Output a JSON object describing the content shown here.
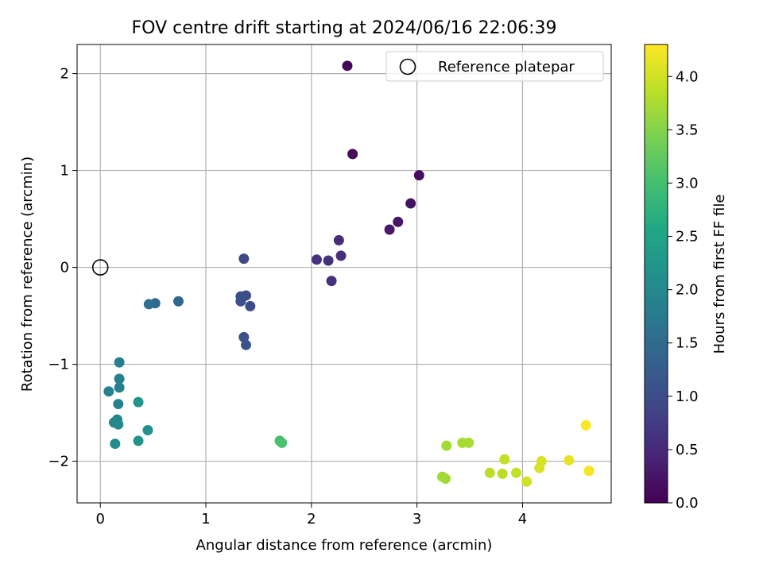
{
  "chart_data": {
    "type": "scatter",
    "title": "FOV centre drift starting at 2024/06/16 22:06:39",
    "xlabel": "Angular distance from reference (arcmin)",
    "ylabel": "Rotation from reference (arcmin)",
    "xlim": [
      -0.22,
      4.84
    ],
    "ylim": [
      -2.43,
      2.3
    ],
    "xticks": [
      0,
      1,
      2,
      3,
      4
    ],
    "yticks": [
      -2,
      -1,
      0,
      1,
      2
    ],
    "grid": true,
    "legend": {
      "position": "top-right",
      "entries": [
        "Reference platepar"
      ]
    },
    "reference_point": {
      "x": 0,
      "y": 0
    },
    "colorbar": {
      "label": "Hours from first FF file",
      "min": 0.0,
      "max": 4.3,
      "ticks": [
        "0.0",
        "0.5",
        "1.0",
        "1.5",
        "2.0",
        "2.5",
        "3.0",
        "3.5",
        "4.0"
      ],
      "colormap": "viridis"
    },
    "points": [
      {
        "x": 2.34,
        "y": 2.08,
        "h": 0.05
      },
      {
        "x": 2.39,
        "y": 1.17,
        "h": 0.1
      },
      {
        "x": 3.02,
        "y": 0.95,
        "h": 0.15
      },
      {
        "x": 2.94,
        "y": 0.66,
        "h": 0.2
      },
      {
        "x": 2.82,
        "y": 0.47,
        "h": 0.25
      },
      {
        "x": 2.74,
        "y": 0.39,
        "h": 0.3
      },
      {
        "x": 2.26,
        "y": 0.28,
        "h": 0.55
      },
      {
        "x": 2.28,
        "y": 0.12,
        "h": 0.58
      },
      {
        "x": 2.16,
        "y": 0.07,
        "h": 0.62
      },
      {
        "x": 2.05,
        "y": 0.08,
        "h": 0.65
      },
      {
        "x": 2.19,
        "y": -0.14,
        "h": 0.6
      },
      {
        "x": 1.36,
        "y": 0.09,
        "h": 0.95
      },
      {
        "x": 1.33,
        "y": -0.3,
        "h": 1.0
      },
      {
        "x": 1.38,
        "y": -0.29,
        "h": 1.02
      },
      {
        "x": 1.33,
        "y": -0.35,
        "h": 1.05
      },
      {
        "x": 1.42,
        "y": -0.4,
        "h": 1.0
      },
      {
        "x": 1.36,
        "y": -0.72,
        "h": 1.05
      },
      {
        "x": 1.38,
        "y": -0.8,
        "h": 1.08
      },
      {
        "x": 0.74,
        "y": -0.35,
        "h": 1.45
      },
      {
        "x": 0.52,
        "y": -0.37,
        "h": 1.5
      },
      {
        "x": 0.46,
        "y": -0.38,
        "h": 1.55
      },
      {
        "x": 0.18,
        "y": -0.98,
        "h": 1.8
      },
      {
        "x": 0.18,
        "y": -1.15,
        "h": 1.85
      },
      {
        "x": 0.18,
        "y": -1.24,
        "h": 1.85
      },
      {
        "x": 0.08,
        "y": -1.28,
        "h": 1.9
      },
      {
        "x": 0.17,
        "y": -1.41,
        "h": 1.9
      },
      {
        "x": 0.36,
        "y": -1.39,
        "h": 2.2
      },
      {
        "x": 0.16,
        "y": -1.57,
        "h": 1.95
      },
      {
        "x": 0.13,
        "y": -1.6,
        "h": 2.0
      },
      {
        "x": 0.17,
        "y": -1.62,
        "h": 2.0
      },
      {
        "x": 0.45,
        "y": -1.68,
        "h": 2.15
      },
      {
        "x": 0.36,
        "y": -1.79,
        "h": 2.2
      },
      {
        "x": 0.14,
        "y": -1.82,
        "h": 2.05
      },
      {
        "x": 1.7,
        "y": -1.79,
        "h": 3.0
      },
      {
        "x": 1.72,
        "y": -1.81,
        "h": 3.05
      },
      {
        "x": 3.28,
        "y": -1.84,
        "h": 3.7
      },
      {
        "x": 3.43,
        "y": -1.81,
        "h": 3.75
      },
      {
        "x": 3.49,
        "y": -1.81,
        "h": 3.75
      },
      {
        "x": 3.24,
        "y": -2.16,
        "h": 3.7
      },
      {
        "x": 3.27,
        "y": -2.18,
        "h": 3.7
      },
      {
        "x": 3.69,
        "y": -2.12,
        "h": 3.85
      },
      {
        "x": 3.81,
        "y": -2.13,
        "h": 3.85
      },
      {
        "x": 3.83,
        "y": -1.98,
        "h": 3.9
      },
      {
        "x": 3.94,
        "y": -2.12,
        "h": 3.9
      },
      {
        "x": 4.04,
        "y": -2.21,
        "h": 4.0
      },
      {
        "x": 4.18,
        "y": -2.0,
        "h": 4.05
      },
      {
        "x": 4.16,
        "y": -2.07,
        "h": 4.05
      },
      {
        "x": 4.44,
        "y": -1.99,
        "h": 4.15
      },
      {
        "x": 4.6,
        "y": -1.63,
        "h": 4.28
      },
      {
        "x": 4.63,
        "y": -2.1,
        "h": 4.25
      }
    ]
  }
}
